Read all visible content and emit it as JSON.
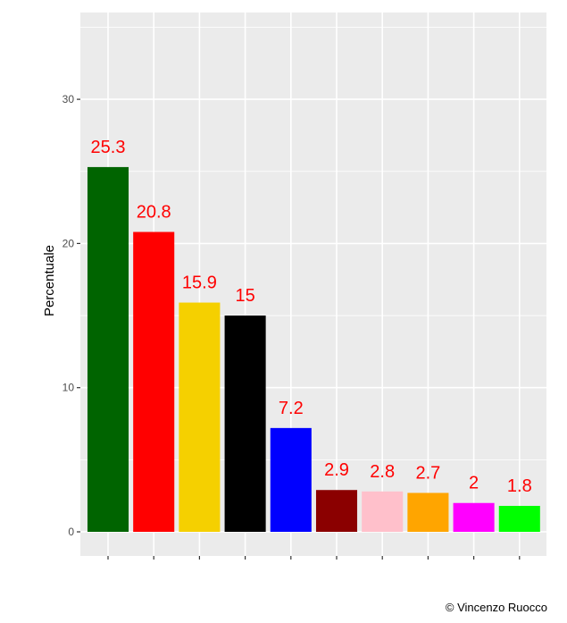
{
  "chart_data": {
    "type": "bar",
    "categories": [
      "",
      "",
      "",
      "",
      "",
      "",
      "",
      "",
      "",
      ""
    ],
    "values": [
      25.3,
      20.8,
      15.9,
      15,
      7.2,
      2.9,
      2.8,
      2.7,
      2,
      1.8
    ],
    "data_labels": [
      "25.3",
      "20.8",
      "15.9",
      "15",
      "7.2",
      "2.9",
      "2.8",
      "2.7",
      "2",
      "1.8"
    ],
    "colors": [
      "#006400",
      "#ff0000",
      "#f5d000",
      "#000000",
      "#0000ff",
      "#8b0000",
      "#ffc0cb",
      "#ffa500",
      "#ff00ff",
      "#00ff00"
    ],
    "ylabel": "Percentuale",
    "xlabel": "",
    "title": "",
    "ylim": [
      -1.6,
      36.5
    ],
    "yticks": [
      0,
      10,
      20,
      30
    ],
    "ytick_labels": [
      "0",
      "10",
      "20",
      "30"
    ],
    "grid": true,
    "label_color": "#ff0000",
    "panel_background": "#ebebeb"
  },
  "caption": "© Vincenzo Ruocco"
}
